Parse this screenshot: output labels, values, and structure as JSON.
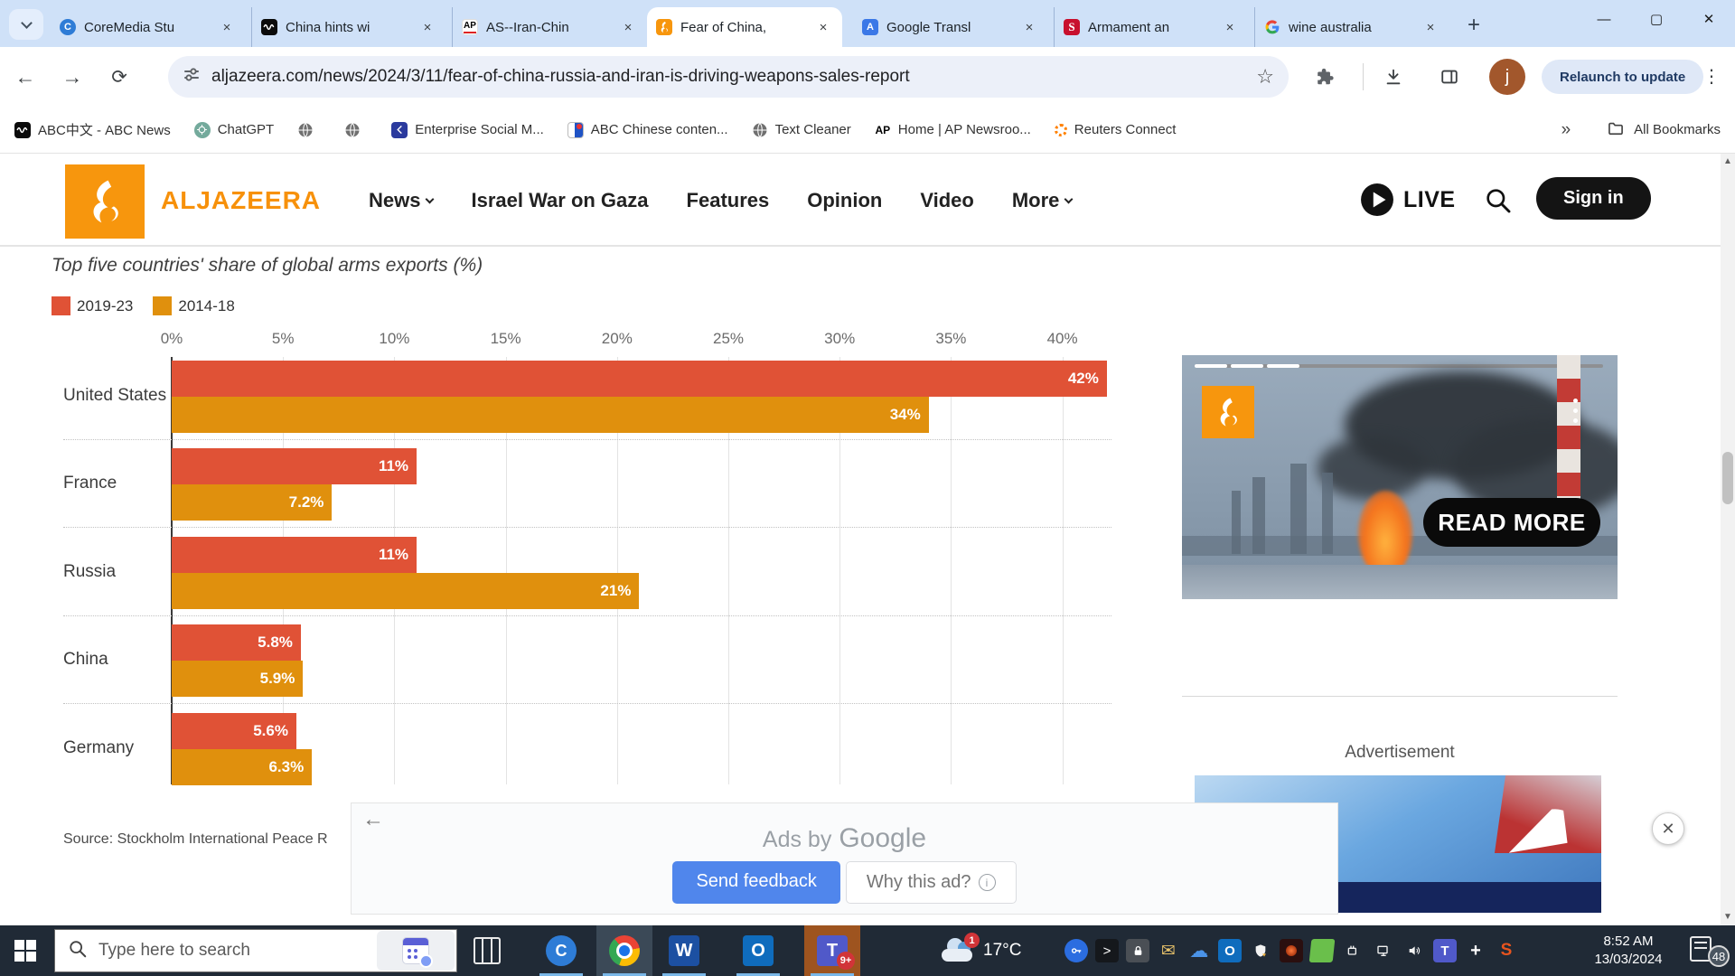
{
  "browser": {
    "tab_strip": {
      "tabs": [
        {
          "title": "CoreMedia Stu",
          "favicon": "coremedia-icon"
        },
        {
          "title": "China hints wi",
          "favicon": "abc-news-icon"
        },
        {
          "title": "AS--Iran-Chin",
          "favicon": "ap-icon"
        },
        {
          "title": "Fear of China,",
          "favicon": "aljazeera-icon"
        },
        {
          "title": "Google Transl",
          "favicon": "google-translate-icon"
        },
        {
          "title": "Armament an",
          "favicon": "sipri-icon"
        },
        {
          "title": "wine australia",
          "favicon": "google-icon"
        }
      ],
      "favicon_text": {
        "coremedia": "C",
        "ap": "AP",
        "translate": "A",
        "sipri": "S"
      }
    },
    "toolbar": {
      "url": "aljazeera.com/news/2024/3/11/fear-of-china-russia-and-iran-is-driving-weapons-sales-report",
      "relaunch_label": "Relaunch to update",
      "profile_initial": "j"
    },
    "bookmarks_bar": {
      "items": [
        {
          "label": "ABC中文 - ABC News"
        },
        {
          "label": "ChatGPT"
        },
        {
          "label": ""
        },
        {
          "label": ""
        },
        {
          "label": "Enterprise Social M..."
        },
        {
          "label": "ABC Chinese conten..."
        },
        {
          "label": "Text Cleaner"
        },
        {
          "label": "Home | AP Newsroo..."
        },
        {
          "label": "Reuters Connect"
        }
      ],
      "overflow_chevron": "»",
      "all_bookmarks_label": "All Bookmarks",
      "ap_favicon_text": "AP"
    }
  },
  "site": {
    "brand": "ALJAZEERA",
    "nav": [
      {
        "label": "News"
      },
      {
        "label": "Israel War on Gaza"
      },
      {
        "label": "Features"
      },
      {
        "label": "Opinion"
      },
      {
        "label": "Video"
      },
      {
        "label": "More"
      }
    ],
    "live_label": "LIVE",
    "sign_in_label": "Sign in"
  },
  "chart_data": {
    "type": "bar",
    "orientation": "horizontal",
    "title": "Top five countries' share of global arms exports (%)",
    "categories": [
      "United States",
      "France",
      "Russia",
      "China",
      "Germany"
    ],
    "series": [
      {
        "name": "2019-23",
        "color": "#e05236",
        "values": [
          42,
          11,
          11,
          5.8,
          5.6
        ],
        "data_labels": [
          "42%",
          "11%",
          "11%",
          "5.8%",
          "5.6%"
        ]
      },
      {
        "name": "2014-18",
        "color": "#e0900d",
        "values": [
          34,
          7.2,
          21,
          5.9,
          6.3
        ],
        "data_labels": [
          "34%",
          "7.2%",
          "21%",
          "5.9%",
          "6.3%"
        ]
      }
    ],
    "x_ticks": [
      "0%",
      "5%",
      "10%",
      "15%",
      "20%",
      "25%",
      "30%",
      "35%",
      "40%"
    ],
    "xlim": [
      0,
      42.6
    ],
    "grid": true,
    "legend_position": "top-left",
    "source": "Source: Stockholm International Peace R"
  },
  "ad_overlay": {
    "ads_by_prefix": "Ads by",
    "ads_brand": "Google",
    "send_feedback_label": "Send feedback",
    "why_this_ad_label": "Why this ad?",
    "close_glyph": "✕"
  },
  "sidebar": {
    "video": {
      "read_more_label": "READ MORE"
    },
    "advertisement_label": "Advertisement"
  },
  "taskbar": {
    "search_placeholder": "Type here to search",
    "weather": {
      "temperature": "17°C",
      "alert_badge": "1"
    },
    "teams_badge": "9+",
    "apps": [
      "coremedia",
      "chrome",
      "word",
      "outlook",
      "teams"
    ],
    "tray_icon_names": [
      "password-key",
      "terminal",
      "privacy-lock",
      "mail",
      "onedrive",
      "outlook-tray",
      "security-shield",
      "graphics-tool",
      "file-sync",
      "power",
      "network-display",
      "volume",
      "teams-tray",
      "citrix-plus",
      "sophos"
    ],
    "clock": {
      "time": "8:52 AM",
      "date": "13/03/2024"
    },
    "notification_count": "48"
  }
}
